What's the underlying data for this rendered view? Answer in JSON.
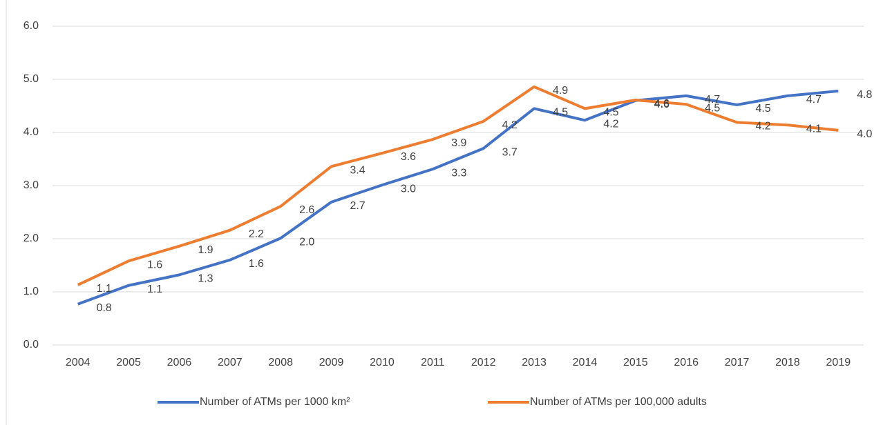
{
  "chart_data": {
    "type": "line",
    "categories": [
      "2004",
      "2005",
      "2006",
      "2007",
      "2008",
      "2009",
      "2010",
      "2011",
      "2012",
      "2013",
      "2014",
      "2015",
      "2016",
      "2017",
      "2018",
      "2019"
    ],
    "series": [
      {
        "name": "Number of ATMs per 1000 km²",
        "color": "#4472c4",
        "values": [
          0.77,
          1.12,
          1.32,
          1.6,
          2.01,
          2.69,
          3.01,
          3.31,
          3.7,
          4.45,
          4.23,
          4.6,
          4.69,
          4.52,
          4.69,
          4.78
        ],
        "value_labels": [
          "0.8",
          "1.1",
          "1.3",
          "1.6",
          "2.0",
          "2.7",
          "3.0",
          "3.3",
          "3.7",
          "4.5",
          "4.2",
          "4.6",
          "4.7",
          "4.5",
          "4.7",
          "4.8"
        ]
      },
      {
        "name": "Number of ATMs per 100,000 adults",
        "color": "#ed7d31",
        "values": [
          1.13,
          1.58,
          1.86,
          2.16,
          2.61,
          3.36,
          3.61,
          3.87,
          4.21,
          4.86,
          4.45,
          4.61,
          4.53,
          4.19,
          4.14,
          4.04
        ],
        "value_labels": [
          "1.1",
          "1.6",
          "1.9",
          "2.2",
          "2.6",
          "3.4",
          "3.6",
          "3.9",
          "4.2",
          "4.9",
          "4.5",
          "4.6",
          "4.5",
          "4.2",
          "4.1",
          "4.0"
        ]
      }
    ],
    "ylim": [
      0,
      6
    ],
    "yticks": [
      {
        "value": 0,
        "label": "0.0"
      },
      {
        "value": 1,
        "label": "1.0"
      },
      {
        "value": 2,
        "label": "2.0"
      },
      {
        "value": 3,
        "label": "3.0"
      },
      {
        "value": 4,
        "label": "4.0"
      },
      {
        "value": 5,
        "label": "5.0"
      },
      {
        "value": 6,
        "label": "6.0"
      }
    ],
    "grid": true,
    "legend": "bottom"
  }
}
